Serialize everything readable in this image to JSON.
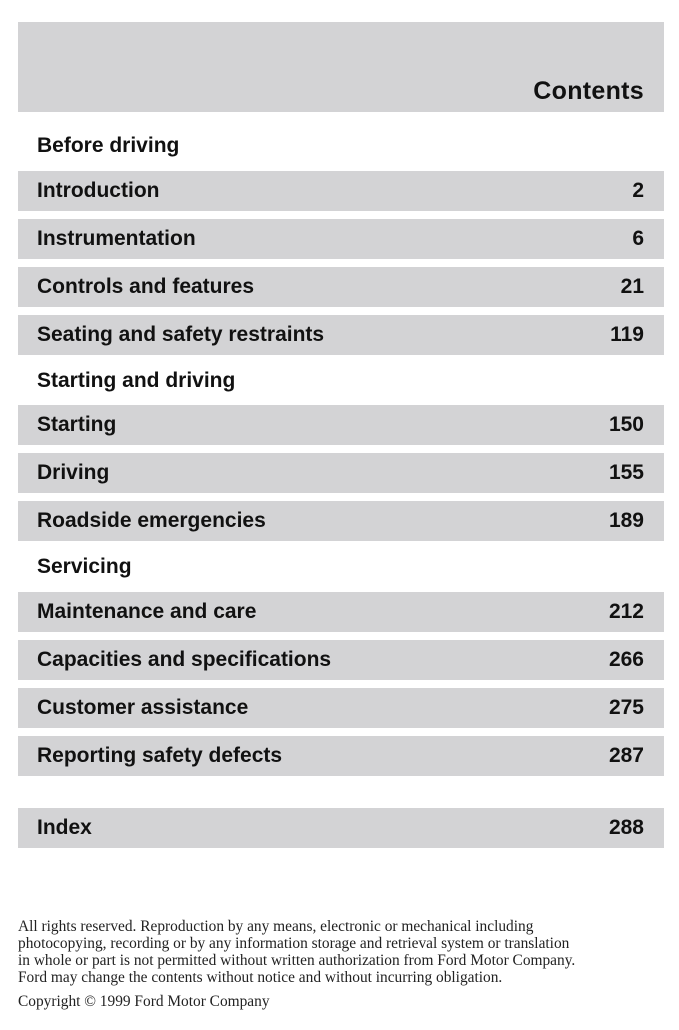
{
  "header": {
    "title": "Contents"
  },
  "sections": [
    {
      "heading": "Before driving",
      "entries": [
        {
          "label": "Introduction",
          "page": "2"
        },
        {
          "label": "Instrumentation",
          "page": "6"
        },
        {
          "label": "Controls and features",
          "page": "21"
        },
        {
          "label": "Seating and safety restraints",
          "page": "119"
        }
      ]
    },
    {
      "heading": "Starting and driving",
      "entries": [
        {
          "label": "Starting",
          "page": "150"
        },
        {
          "label": "Driving",
          "page": "155"
        },
        {
          "label": "Roadside emergencies",
          "page": "189"
        }
      ]
    },
    {
      "heading": "Servicing",
      "entries": [
        {
          "label": "Maintenance and care",
          "page": "212"
        },
        {
          "label": "Capacities and specifications",
          "page": "266"
        },
        {
          "label": "Customer assistance",
          "page": "275"
        },
        {
          "label": "Reporting safety defects",
          "page": "287"
        }
      ]
    }
  ],
  "index": {
    "label": "Index",
    "page": "288"
  },
  "footer": {
    "lines": [
      "All rights reserved. Reproduction by any means, electronic or mechanical including",
      "photocopying, recording or by any information storage and retrieval system or translation",
      "in whole or part is not permitted without written authorization from Ford Motor Company.",
      "Ford may change the contents without notice and without incurring obligation."
    ],
    "copyright": "Copyright © 1999 Ford Motor Company"
  }
}
